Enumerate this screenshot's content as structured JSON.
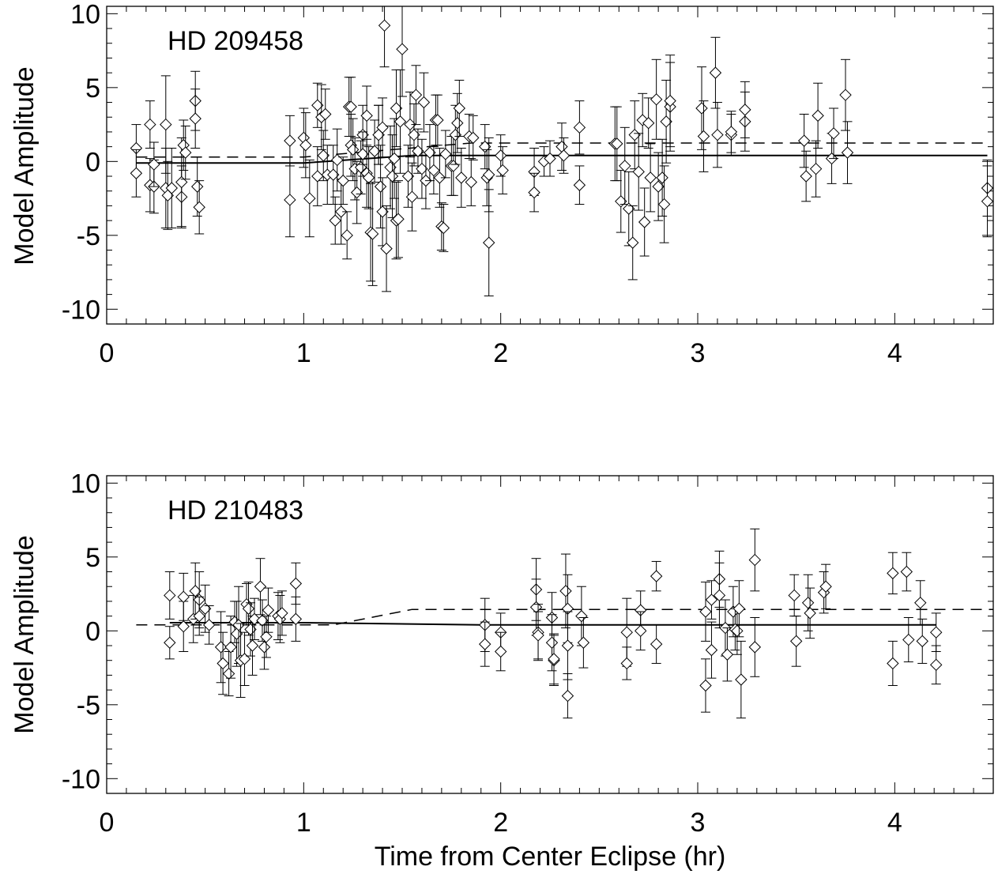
{
  "figure": {
    "xlabel": "Time from Center Eclipse (hr)"
  },
  "chart_data": [
    {
      "type": "scatter",
      "title": "HD 209458",
      "xlabel": "",
      "ylabel": "Model Amplitude",
      "xlim": [
        0,
        4.5
      ],
      "ylim": [
        -11,
        10.5
      ],
      "xticks": [
        0,
        1,
        2,
        3,
        4
      ],
      "xtick_labels": [
        "0",
        "1",
        "2",
        "3",
        "4"
      ],
      "yticks": [
        -10,
        -5,
        0,
        5,
        10
      ],
      "ytick_labels": [
        "-10",
        "-5",
        "0",
        "5",
        "10"
      ],
      "marker": "diamond",
      "points": [
        [
          0.15,
          0.9,
          1.6
        ],
        [
          0.15,
          -0.8,
          1.6
        ],
        [
          0.22,
          2.5,
          1.6
        ],
        [
          0.22,
          -1.6,
          1.8
        ],
        [
          0.24,
          -1.7,
          1.8
        ],
        [
          0.24,
          -0.2,
          1.5
        ],
        [
          0.3,
          2.5,
          3.3
        ],
        [
          0.3,
          -1.8,
          2.7
        ],
        [
          0.31,
          -2.3,
          2.3
        ],
        [
          0.33,
          -1.8,
          2.7
        ],
        [
          0.38,
          -2.4,
          2.1
        ],
        [
          0.38,
          -1.4,
          3.0
        ],
        [
          0.39,
          1.1,
          1.7
        ],
        [
          0.4,
          0.6,
          1.8
        ],
        [
          0.45,
          4.1,
          2.0
        ],
        [
          0.45,
          2.9,
          2.0
        ],
        [
          0.46,
          -1.7,
          2.0
        ],
        [
          0.47,
          -3.1,
          1.8
        ],
        [
          0.93,
          1.4,
          1.7
        ],
        [
          0.93,
          -2.6,
          2.5
        ],
        [
          1.0,
          1.6,
          2.0
        ],
        [
          1.01,
          1.1,
          2.2
        ],
        [
          1.03,
          -2.5,
          2.6
        ],
        [
          1.07,
          3.8,
          1.5
        ],
        [
          1.07,
          -1.0,
          2.0
        ],
        [
          1.09,
          3.0,
          2.2
        ],
        [
          1.1,
          0.4,
          1.7
        ],
        [
          1.11,
          3.2,
          1.7
        ],
        [
          1.12,
          -0.9,
          2.0
        ],
        [
          1.15,
          -0.9,
          2.0
        ],
        [
          1.16,
          -4.0,
          1.6
        ],
        [
          1.17,
          0.1,
          2.1
        ],
        [
          1.19,
          -3.4,
          2.2
        ],
        [
          1.2,
          -1.3,
          1.6
        ],
        [
          1.22,
          -5.0,
          1.6
        ],
        [
          1.23,
          3.7,
          2.0
        ],
        [
          1.24,
          3.7,
          2.0
        ],
        [
          1.24,
          1.1,
          2.1
        ],
        [
          1.25,
          0.8,
          2.1
        ],
        [
          1.26,
          -0.5,
          2.1
        ],
        [
          1.27,
          -2.1,
          2.1
        ],
        [
          1.29,
          -0.4,
          1.8
        ],
        [
          1.3,
          1.8,
          2.0
        ],
        [
          1.3,
          0.5,
          1.5
        ],
        [
          1.32,
          3.1,
          2.0
        ],
        [
          1.32,
          -0.8,
          2.3
        ],
        [
          1.33,
          -1.1,
          2.1
        ],
        [
          1.34,
          -4.8,
          3.3
        ],
        [
          1.35,
          -4.9,
          3.5
        ],
        [
          1.36,
          0.7,
          2.1
        ],
        [
          1.38,
          1.8,
          2.0
        ],
        [
          1.38,
          1.8,
          2.0
        ],
        [
          1.39,
          -1.7,
          2.8
        ],
        [
          1.4,
          2.3,
          2.0
        ],
        [
          1.4,
          -3.4,
          2.3
        ],
        [
          1.41,
          9.2,
          2.8
        ],
        [
          1.42,
          -5.9,
          2.9
        ],
        [
          1.44,
          -0.4,
          2.8
        ],
        [
          1.45,
          -1.0,
          2.8
        ],
        [
          1.46,
          0.2,
          2.7
        ],
        [
          1.47,
          -4.0,
          2.6
        ],
        [
          1.47,
          3.6,
          2.6
        ],
        [
          1.48,
          -3.9,
          2.6
        ],
        [
          1.49,
          2.7,
          3.5
        ],
        [
          1.5,
          7.6,
          3.2
        ],
        [
          1.53,
          -1.0,
          2.1
        ],
        [
          1.54,
          2.5,
          2.2
        ],
        [
          1.55,
          -2.4,
          2.3
        ],
        [
          1.56,
          1.8,
          2.1
        ],
        [
          1.57,
          4.5,
          2.0
        ],
        [
          1.58,
          0.7,
          1.5
        ],
        [
          1.6,
          -0.5,
          2.0
        ],
        [
          1.61,
          4.0,
          2.0
        ],
        [
          1.62,
          -1.3,
          1.9
        ],
        [
          1.64,
          0.6,
          1.9
        ],
        [
          1.66,
          -0.6,
          1.6
        ],
        [
          1.67,
          2.8,
          1.7
        ],
        [
          1.68,
          2.8,
          1.7
        ],
        [
          1.69,
          -1.1,
          2.0
        ],
        [
          1.7,
          -4.4,
          1.6
        ],
        [
          1.71,
          -4.5,
          1.6
        ],
        [
          1.72,
          0.5,
          1.6
        ],
        [
          1.75,
          -0.3,
          2.0
        ],
        [
          1.76,
          -0.3,
          2.0
        ],
        [
          1.77,
          1.8,
          2.0
        ],
        [
          1.78,
          2.6,
          2.0
        ],
        [
          1.79,
          3.6,
          1.9
        ],
        [
          1.8,
          -1.1,
          2.0
        ],
        [
          1.84,
          1.7,
          1.5
        ],
        [
          1.85,
          -1.4,
          1.6
        ],
        [
          1.86,
          1.6,
          1.5
        ],
        [
          1.92,
          1.0,
          1.5
        ],
        [
          1.93,
          -1.1,
          1.9
        ],
        [
          1.94,
          -5.5,
          3.6
        ],
        [
          1.94,
          -0.9,
          2.5
        ],
        [
          2.0,
          0.4,
          1.4
        ],
        [
          2.01,
          -0.6,
          1.6
        ],
        [
          2.17,
          -0.7,
          1.6
        ],
        [
          2.17,
          -2.1,
          1.3
        ],
        [
          2.22,
          0.0,
          1.0
        ],
        [
          2.25,
          0.2,
          1.2
        ],
        [
          2.31,
          1.0,
          1.6
        ],
        [
          2.32,
          0.4,
          1.2
        ],
        [
          2.4,
          2.3,
          1.8
        ],
        [
          2.4,
          -1.6,
          1.3
        ],
        [
          2.58,
          1.2,
          2.5
        ],
        [
          2.59,
          1.2,
          2.5
        ],
        [
          2.61,
          -2.7,
          2.1
        ],
        [
          2.63,
          -0.3,
          2.6
        ],
        [
          2.65,
          -3.2,
          2.5
        ],
        [
          2.67,
          -5.5,
          2.5
        ],
        [
          2.68,
          1.8,
          2.3
        ],
        [
          2.7,
          -0.7,
          2.6
        ],
        [
          2.72,
          2.8,
          1.8
        ],
        [
          2.73,
          -4.1,
          2.3
        ],
        [
          2.75,
          2.6,
          1.7
        ],
        [
          2.76,
          -1.1,
          2.3
        ],
        [
          2.79,
          4.2,
          2.7
        ],
        [
          2.8,
          -1.7,
          2.3
        ],
        [
          2.82,
          -1.1,
          2.6
        ],
        [
          2.83,
          -2.9,
          2.6
        ],
        [
          2.84,
          2.7,
          2.8
        ],
        [
          2.86,
          3.7,
          3.0
        ],
        [
          2.86,
          4.1,
          3.1
        ],
        [
          3.02,
          3.6,
          2.8
        ],
        [
          3.03,
          1.7,
          2.4
        ],
        [
          3.09,
          6.0,
          2.4
        ],
        [
          3.1,
          1.8,
          2.2
        ],
        [
          3.17,
          1.8,
          1.4
        ],
        [
          3.17,
          2.0,
          1.4
        ],
        [
          3.24,
          2.7,
          2.0
        ],
        [
          3.24,
          3.5,
          1.9
        ],
        [
          3.54,
          1.4,
          1.8
        ],
        [
          3.55,
          -1.0,
          1.7
        ],
        [
          3.6,
          -0.5,
          1.9
        ],
        [
          3.61,
          3.1,
          2.2
        ],
        [
          3.68,
          0.2,
          1.7
        ],
        [
          3.69,
          1.9,
          1.7
        ],
        [
          3.75,
          4.5,
          2.4
        ],
        [
          3.76,
          0.6,
          2.1
        ],
        [
          4.47,
          -1.8,
          1.9
        ],
        [
          4.47,
          -2.7,
          2.4
        ]
      ],
      "solid_line": [
        [
          0.15,
          -0.1
        ],
        [
          1.0,
          -0.1
        ],
        [
          1.55,
          0.4
        ],
        [
          4.47,
          0.4
        ]
      ],
      "dashed_line": [
        [
          0.15,
          0.3
        ],
        [
          1.0,
          0.3
        ],
        [
          1.85,
          1.25
        ],
        [
          4.47,
          1.25
        ]
      ]
    },
    {
      "type": "scatter",
      "title": "HD 210483",
      "xlabel": "Time from Center Eclipse (hr)",
      "ylabel": "Model Amplitude",
      "xlim": [
        0,
        4.5
      ],
      "ylim": [
        -11,
        10.5
      ],
      "xticks": [
        0,
        1,
        2,
        3,
        4
      ],
      "xtick_labels": [
        "0",
        "1",
        "2",
        "3",
        "4"
      ],
      "yticks": [
        -10,
        -5,
        0,
        5,
        10
      ],
      "ytick_labels": [
        "-10",
        "-5",
        "0",
        "5",
        "10"
      ],
      "marker": "diamond",
      "points": [
        [
          0.32,
          2.4,
          1.6
        ],
        [
          0.32,
          -0.8,
          1.1
        ],
        [
          0.39,
          0.3,
          1.7
        ],
        [
          0.39,
          2.3,
          1.6
        ],
        [
          0.44,
          0.8,
          1.6
        ],
        [
          0.45,
          2.7,
          1.9
        ],
        [
          0.47,
          2.1,
          1.9
        ],
        [
          0.47,
          1.0,
          1.3
        ],
        [
          0.5,
          1.5,
          1.6
        ],
        [
          0.52,
          0.4,
          1.3
        ],
        [
          0.58,
          -1.1,
          2.4
        ],
        [
          0.59,
          -2.2,
          2.1
        ],
        [
          0.62,
          -2.9,
          1.5
        ],
        [
          0.63,
          -1.1,
          2.1
        ],
        [
          0.65,
          0.6,
          1.4
        ],
        [
          0.66,
          -0.2,
          2.2
        ],
        [
          0.67,
          0.4,
          2.6
        ],
        [
          0.68,
          -2.0,
          2.5
        ],
        [
          0.7,
          -1.9,
          1.8
        ],
        [
          0.71,
          1.8,
          1.4
        ],
        [
          0.72,
          1.5,
          1.8
        ],
        [
          0.73,
          0.1,
          1.8
        ],
        [
          0.74,
          -1.0,
          2.0
        ],
        [
          0.75,
          0.8,
          1.4
        ],
        [
          0.78,
          3.0,
          1.9
        ],
        [
          0.79,
          0.7,
          1.4
        ],
        [
          0.8,
          -1.1,
          1.5
        ],
        [
          0.81,
          -0.4,
          1.4
        ],
        [
          0.82,
          1.4,
          1.5
        ],
        [
          0.87,
          1.0,
          1.6
        ],
        [
          0.88,
          0.8,
          1.6
        ],
        [
          0.89,
          1.2,
          1.5
        ],
        [
          0.96,
          3.2,
          1.4
        ],
        [
          0.96,
          0.8,
          1.5
        ],
        [
          1.92,
          0.4,
          1.8
        ],
        [
          1.92,
          -0.9,
          1.5
        ],
        [
          2.0,
          -0.1,
          1.3
        ],
        [
          2.0,
          -1.4,
          1.3
        ],
        [
          2.18,
          2.8,
          2.1
        ],
        [
          2.18,
          1.6,
          1.9
        ],
        [
          2.19,
          -0.1,
          1.9
        ],
        [
          2.19,
          -0.3,
          1.6
        ],
        [
          2.26,
          0.9,
          1.7
        ],
        [
          2.26,
          -0.8,
          1.9
        ],
        [
          2.27,
          -2.0,
          1.7
        ],
        [
          2.27,
          -1.9,
          1.7
        ],
        [
          2.33,
          2.7,
          2.5
        ],
        [
          2.34,
          1.5,
          2.3
        ],
        [
          2.34,
          -1.0,
          2.3
        ],
        [
          2.34,
          -4.4,
          1.5
        ],
        [
          2.41,
          1.0,
          2.0
        ],
        [
          2.42,
          -0.8,
          1.7
        ],
        [
          2.64,
          -0.1,
          2.3
        ],
        [
          2.64,
          -2.2,
          1.1
        ],
        [
          2.71,
          1.4,
          1.3
        ],
        [
          2.71,
          0.0,
          1.3
        ],
        [
          2.79,
          3.7,
          1.0
        ],
        [
          2.79,
          -0.9,
          1.3
        ],
        [
          3.04,
          1.3,
          2.0
        ],
        [
          3.04,
          -3.7,
          1.8
        ],
        [
          3.07,
          2.1,
          1.3
        ],
        [
          3.07,
          -1.3,
          1.9
        ],
        [
          3.11,
          3.5,
          1.9
        ],
        [
          3.11,
          2.4,
          2.2
        ],
        [
          3.14,
          0.2,
          1.9
        ],
        [
          3.15,
          -1.6,
          1.8
        ],
        [
          3.18,
          1.3,
          1.7
        ],
        [
          3.19,
          0.1,
          1.4
        ],
        [
          3.2,
          0.0,
          1.6
        ],
        [
          3.21,
          1.5,
          1.9
        ],
        [
          3.22,
          -3.3,
          2.6
        ],
        [
          3.29,
          4.8,
          2.1
        ],
        [
          3.29,
          -1.1,
          2.0
        ],
        [
          3.49,
          2.4,
          1.4
        ],
        [
          3.5,
          -0.7,
          1.7
        ],
        [
          3.56,
          1.9,
          1.9
        ],
        [
          3.57,
          1.2,
          1.7
        ],
        [
          3.64,
          2.6,
          1.4
        ],
        [
          3.65,
          3.0,
          1.5
        ],
        [
          3.99,
          3.9,
          1.4
        ],
        [
          3.99,
          -2.2,
          1.5
        ],
        [
          4.06,
          4.0,
          1.3
        ],
        [
          4.07,
          -0.6,
          1.5
        ],
        [
          4.13,
          1.9,
          1.5
        ],
        [
          4.14,
          -0.7,
          1.5
        ],
        [
          4.21,
          -0.1,
          1.3
        ],
        [
          4.21,
          -2.3,
          1.3
        ]
      ],
      "solid_line": [
        [
          0.32,
          0.55
        ],
        [
          1.0,
          0.55
        ],
        [
          1.9,
          0.4
        ],
        [
          4.21,
          0.4
        ]
      ],
      "dashed_line": [
        [
          0.15,
          0.4
        ],
        [
          1.15,
          0.4
        ],
        [
          1.55,
          1.45
        ],
        [
          4.5,
          1.45
        ]
      ]
    }
  ]
}
